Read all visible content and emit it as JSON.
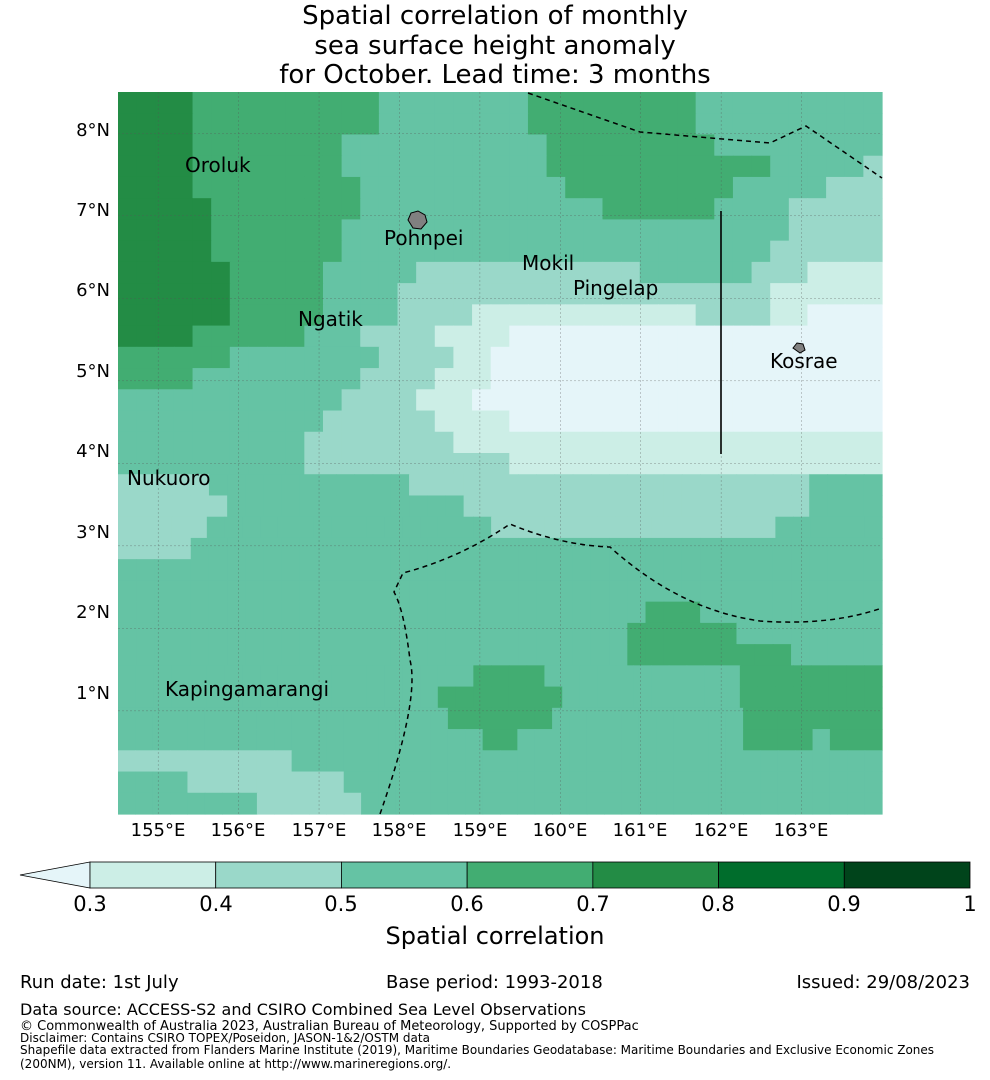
{
  "title_lines": [
    "Spatial correlation of monthly",
    "sea surface height anomaly",
    "for October. Lead time: 3 months"
  ],
  "map": {
    "lon_range": [
      154.5,
      164.0
    ],
    "lat_range": [
      -0.25,
      8.5
    ],
    "x_ticks": [
      "155°E",
      "156°E",
      "157°E",
      "158°E",
      "159°E",
      "160°E",
      "161°E",
      "162°E",
      "163°E"
    ],
    "y_ticks": [
      "1°N",
      "2°N",
      "3°N",
      "4°N",
      "5°N",
      "6°N",
      "7°N",
      "8°N"
    ],
    "places": [
      {
        "name": "Oroluk"
      },
      {
        "name": "Pohnpei"
      },
      {
        "name": "Mokil"
      },
      {
        "name": "Pingelap"
      },
      {
        "name": "Ngatik"
      },
      {
        "name": "Kosrae"
      },
      {
        "name": "Nukuoro"
      },
      {
        "name": "Kapingamarangi"
      }
    ],
    "boundary_style": "dashed",
    "grid": true
  },
  "colorbar": {
    "title": "Spatial correlation",
    "labels": [
      "0.3",
      "0.4",
      "0.5",
      "0.6",
      "0.7",
      "0.8",
      "0.9",
      "1"
    ],
    "colors": [
      "#cceee6",
      "#9ad8c9",
      "#65c3a4",
      "#42ad72",
      "#238c45",
      "#006d2c",
      "#00441b"
    ],
    "under_color": "#e5f5f9",
    "extend": "min"
  },
  "footer": {
    "run_date": "Run date: 1st July",
    "base_period": "Base period: 1993-2018",
    "issued": "Issued: 29/08/2023",
    "data_source": "Data source: ACCESS-S2 and CSIRO Combined Sea Level Observations",
    "copyright": "© Commonwealth of Australia 2023, Australian Bureau of Meteorology, Supported by COSPPac",
    "disclaimer": "Disclaimer: Contains CSIRO TOPEX/Poseidon, JASON-1&2/OSTM data",
    "shapefile_1": "Shapefile data extracted from Flanders Marine Institute (2019), Maritime Boundaries Geodatabase: Maritime Boundaries and Exclusive Economic Zones",
    "shapefile_2": "(200NM), version 11. Available online at http://www.marineregions.org/."
  }
}
